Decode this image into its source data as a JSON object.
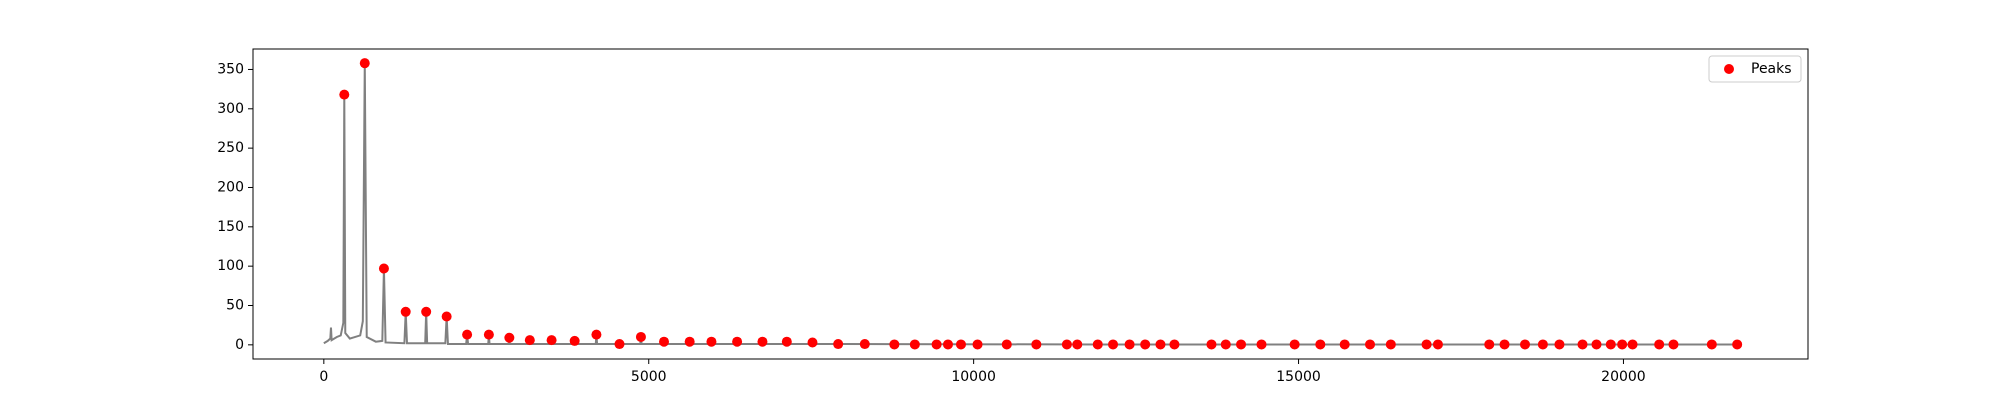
{
  "chart_data": {
    "type": "line",
    "xlim": [
      -1090,
      22840
    ],
    "ylim": [
      -18,
      376
    ],
    "xticks": [
      0,
      5000,
      10000,
      15000,
      20000
    ],
    "yticks": [
      0,
      50,
      100,
      150,
      200,
      250,
      300,
      350
    ],
    "legend": "upper right",
    "series": [
      {
        "type": "line",
        "color": "#808080",
        "x": [
          0,
          60,
          100,
          110,
          120,
          200,
          260,
          300,
          315,
          330,
          400,
          560,
          600,
          630,
          660,
          800,
          900,
          925,
          950,
          1240,
          1260,
          1280,
          1560,
          1575,
          1590,
          1870,
          1890,
          1910,
          2190,
          2205,
          2220,
          2530,
          2540,
          2550,
          2850,
          2855,
          2860,
          3165,
          3170,
          3175,
          3500,
          3505,
          3510,
          3850,
          3860,
          3870,
          4185,
          4195,
          4205,
          4870,
          4880,
          4890,
          6000,
          8000,
          12000,
          16000,
          21750
        ],
        "values": [
          2,
          5,
          8,
          22,
          6,
          10,
          12,
          28,
          318,
          15,
          8,
          12,
          30,
          358,
          10,
          4,
          5,
          97,
          3,
          2,
          42,
          2,
          2,
          42,
          2,
          2,
          36,
          1,
          1,
          13,
          1,
          1,
          13,
          1,
          1,
          9,
          1,
          1,
          6,
          1,
          1,
          6,
          1,
          1,
          5,
          1,
          1,
          13,
          1,
          1,
          10,
          1,
          1,
          1,
          0.5,
          0.5,
          0.5
        ]
      },
      {
        "type": "scatter",
        "name": "Peaks",
        "color": "#ff0000",
        "x": [
          315,
          630,
          925,
          1260,
          1575,
          1890,
          2205,
          2540,
          2855,
          3170,
          3505,
          3860,
          4195,
          4550,
          4880,
          5235,
          5630,
          5965,
          6360,
          6750,
          7125,
          7520,
          7915,
          8325,
          8780,
          9095,
          9430,
          9605,
          9805,
          10060,
          10510,
          10965,
          11435,
          11595,
          11910,
          12145,
          12400,
          12640,
          12875,
          13090,
          13660,
          13880,
          14115,
          14430,
          14940,
          15335,
          15710,
          16100,
          16420,
          16970,
          17145,
          17935,
          18170,
          18485,
          18760,
          19015,
          19370,
          19585,
          19805,
          19980,
          20140,
          20550,
          20770,
          21360,
          21750
        ],
        "values": [
          318,
          358,
          97,
          42,
          42,
          36,
          13,
          13,
          9,
          6,
          6,
          5,
          13,
          1,
          10,
          4,
          4,
          4,
          4,
          4,
          4,
          3,
          1,
          1,
          0.5,
          0.5,
          0.5,
          0.5,
          0.5,
          0.5,
          0.5,
          0.5,
          0.5,
          0.5,
          0.5,
          0.5,
          0.5,
          0.5,
          0.5,
          0.5,
          0.5,
          0.5,
          0.5,
          0.5,
          0.5,
          0.5,
          0.5,
          0.5,
          0.5,
          0.5,
          0.5,
          0.5,
          0.5,
          0.5,
          0.5,
          0.5,
          0.5,
          0.5,
          0.5,
          0.5,
          0.5,
          0.5,
          0.5,
          0.5,
          0.5
        ]
      }
    ]
  }
}
